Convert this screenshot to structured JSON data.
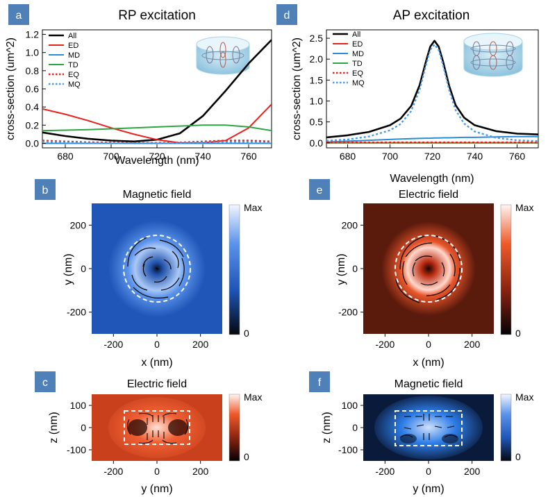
{
  "figure": {
    "panel_labels": [
      "a",
      "b",
      "c",
      "d",
      "e",
      "f"
    ],
    "colorbar_max": "Max",
    "colorbar_min": "0"
  },
  "chart_data": [
    {
      "id": "a",
      "type": "line",
      "title": "RP excitation",
      "xlabel": "Wavelength (nm)",
      "ylabel": "cross-section (um^2)",
      "xlim": [
        670,
        770
      ],
      "ylim": [
        -0.05,
        1.25
      ],
      "xticks": [
        680,
        700,
        720,
        740,
        760
      ],
      "yticks": [
        0.0,
        0.2,
        0.4,
        0.6,
        0.8,
        1.0,
        1.2
      ],
      "ytick_labels": [
        "0.0",
        "0.2",
        "0.4",
        "0.6",
        "0.8",
        "1.0",
        "1.2"
      ],
      "x": [
        670,
        680,
        690,
        700,
        710,
        720,
        730,
        740,
        750,
        760,
        770
      ],
      "series": [
        {
          "name": "All",
          "color": "#000000",
          "dash": "solid",
          "values": [
            0.12,
            0.08,
            0.05,
            0.03,
            0.02,
            0.04,
            0.11,
            0.3,
            0.58,
            0.88,
            1.14
          ]
        },
        {
          "name": "ED",
          "color": "#e8201a",
          "dash": "solid",
          "values": [
            0.38,
            0.32,
            0.25,
            0.17,
            0.1,
            0.04,
            0.005,
            0.005,
            0.03,
            0.17,
            0.43
          ]
        },
        {
          "name": "MD",
          "color": "#2a8cd6",
          "dash": "solid",
          "values": [
            0.0,
            0.0,
            0.0,
            0.0,
            0.0,
            0.0,
            0.0,
            0.0,
            0.0,
            0.0,
            0.0
          ]
        },
        {
          "name": "TD",
          "color": "#2ca444",
          "dash": "solid",
          "values": [
            0.14,
            0.145,
            0.15,
            0.16,
            0.17,
            0.18,
            0.19,
            0.2,
            0.2,
            0.18,
            0.14
          ]
        },
        {
          "name": "EQ",
          "color": "#e8201a",
          "dash": "dot",
          "values": [
            0.03,
            0.02,
            0.012,
            0.008,
            0.005,
            0.005,
            0.01,
            0.02,
            0.03,
            0.03,
            0.02
          ]
        },
        {
          "name": "MQ",
          "color": "#4a9ae8",
          "dash": "dot",
          "values": [
            0.02,
            0.01,
            0.005,
            0.002,
            0.0,
            0.0,
            0.005,
            0.01,
            0.015,
            0.01,
            0.005
          ]
        }
      ]
    },
    {
      "id": "d",
      "type": "line",
      "title": "AP excitation",
      "xlabel": "Wavelength (nm)",
      "ylabel": "cross-section (um^2)",
      "xlim": [
        670,
        770
      ],
      "ylim": [
        -0.12,
        2.7
      ],
      "xticks": [
        680,
        700,
        720,
        740,
        760
      ],
      "yticks": [
        0.0,
        0.5,
        1.0,
        1.5,
        2.0,
        2.5
      ],
      "ytick_labels": [
        "0.0",
        "0.5",
        "1.0",
        "1.5",
        "2.0",
        "2.5"
      ],
      "x": [
        670,
        680,
        690,
        700,
        705,
        710,
        714,
        717,
        719,
        721,
        723,
        725,
        728,
        731,
        735,
        740,
        750,
        760,
        770
      ],
      "series": [
        {
          "name": "All",
          "color": "#000000",
          "dash": "solid",
          "values": [
            0.13,
            0.18,
            0.26,
            0.42,
            0.58,
            0.88,
            1.38,
            1.95,
            2.3,
            2.44,
            2.3,
            1.95,
            1.35,
            0.9,
            0.6,
            0.42,
            0.28,
            0.22,
            0.2
          ]
        },
        {
          "name": "ED",
          "color": "#e8201a",
          "dash": "solid",
          "values": [
            0.0,
            0.0,
            0.0,
            0.0,
            0.0,
            0.0,
            0.0,
            0.0,
            0.0,
            0.0,
            0.0,
            0.0,
            0.0,
            0.0,
            0.0,
            0.0,
            0.0,
            0.0,
            0.0
          ]
        },
        {
          "name": "MD",
          "color": "#2a8cd6",
          "dash": "solid",
          "values": [
            0.02,
            0.04,
            0.06,
            0.08,
            0.09,
            0.1,
            0.105,
            0.11,
            0.11,
            0.115,
            0.115,
            0.12,
            0.12,
            0.125,
            0.13,
            0.13,
            0.14,
            0.15,
            0.15
          ]
        },
        {
          "name": "TD",
          "color": "#2ca444",
          "dash": "solid",
          "values": [
            0.0,
            0.0,
            0.0,
            0.0,
            0.0,
            0.0,
            0.0,
            0.0,
            0.0,
            0.0,
            0.0,
            0.0,
            0.0,
            0.0,
            0.0,
            0.0,
            0.0,
            0.0,
            0.0
          ]
        },
        {
          "name": "EQ",
          "color": "#e8201a",
          "dash": "dot",
          "values": [
            0.01,
            0.01,
            0.01,
            0.01,
            0.01,
            0.01,
            0.01,
            0.01,
            0.01,
            0.01,
            0.01,
            0.01,
            0.01,
            0.01,
            0.01,
            0.01,
            0.01,
            0.01,
            0.01
          ]
        },
        {
          "name": "MQ",
          "color": "#4a9ae8",
          "dash": "dot",
          "values": [
            0.05,
            0.08,
            0.15,
            0.3,
            0.45,
            0.76,
            1.27,
            1.86,
            2.22,
            2.35,
            2.22,
            1.86,
            1.25,
            0.78,
            0.46,
            0.27,
            0.12,
            0.06,
            0.04
          ]
        }
      ]
    },
    {
      "id": "b",
      "type": "heatmap",
      "title": "Magnetic field",
      "xlabel": "x (nm)",
      "ylabel": "y (nm)",
      "xlim": [
        -300,
        300
      ],
      "ylim": [
        -300,
        300
      ],
      "xticks": [
        -200,
        0,
        200
      ],
      "yticks": [
        -200,
        0,
        200
      ],
      "colormap": "blue",
      "disk_radius_nm": 150
    },
    {
      "id": "e",
      "type": "heatmap",
      "title": "Electric field",
      "xlabel": "x (nm)",
      "ylabel": "y (nm)",
      "xlim": [
        -300,
        300
      ],
      "ylim": [
        -300,
        300
      ],
      "xticks": [
        -200,
        0,
        200
      ],
      "yticks": [
        -200,
        0,
        200
      ],
      "colormap": "red",
      "disk_radius_nm": 150
    },
    {
      "id": "c",
      "type": "heatmap",
      "title": "Electric field",
      "xlabel": "y (nm)",
      "ylabel": "z (nm)",
      "xlim": [
        -300,
        300
      ],
      "ylim": [
        -150,
        150
      ],
      "xticks": [
        -200,
        0,
        200
      ],
      "yticks": [
        -100,
        0,
        100
      ],
      "colormap": "red",
      "box_nm": [
        -150,
        150,
        -75,
        75
      ]
    },
    {
      "id": "f",
      "type": "heatmap",
      "title": "Magnetic field",
      "xlabel": "y (nm)",
      "ylabel": "z (nm)",
      "xlim": [
        -300,
        300
      ],
      "ylim": [
        -150,
        150
      ],
      "xticks": [
        -200,
        0,
        200
      ],
      "yticks": [
        -100,
        0,
        100
      ],
      "colormap": "blue",
      "box_nm": [
        -150,
        150,
        -75,
        75
      ]
    }
  ]
}
